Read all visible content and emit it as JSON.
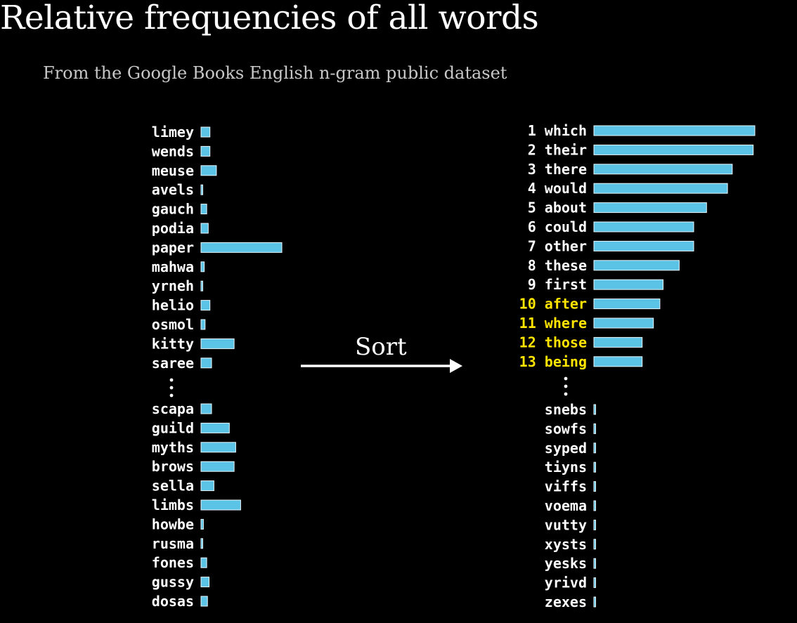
{
  "title": "Relative frequencies of all words",
  "subtitle": "From the Google Books English n-gram public dataset",
  "arrow_label": "Sort",
  "colors": {
    "bar": "#5bc4e6",
    "highlight": "#ffe400",
    "text": "#ffffff",
    "background": "#000000"
  },
  "chart_data": [
    {
      "type": "bar",
      "orientation": "horizontal",
      "title": "",
      "xlabel": "",
      "ylabel": "",
      "groups": [
        {
          "categories": [
            "limey",
            "wends",
            "meuse",
            "avels",
            "gauch",
            "podia",
            "paper",
            "mahwa",
            "yrneh",
            "helio",
            "osmol",
            "kitty",
            "saree"
          ],
          "values": [
            0.11,
            0.11,
            0.19,
            0.02,
            0.07,
            0.09,
            1.0,
            0.04,
            0.01,
            0.11,
            0.05,
            0.41,
            0.13
          ]
        },
        {
          "categories": [
            "scapa",
            "guild",
            "myths",
            "brows",
            "sella",
            "limbs",
            "howbe",
            "rusma",
            "fones",
            "gussy",
            "dosas"
          ],
          "values": [
            0.13,
            0.35,
            0.43,
            0.41,
            0.16,
            0.49,
            0.03,
            0.02,
            0.07,
            0.1,
            0.08
          ]
        }
      ]
    },
    {
      "type": "bar",
      "orientation": "horizontal",
      "title": "",
      "xlabel": "",
      "ylabel": "",
      "groups": [
        {
          "ranks": [
            "1",
            "2",
            "3",
            "4",
            "5",
            "6",
            "7",
            "8",
            "9",
            "10",
            "11",
            "12",
            "13"
          ],
          "categories": [
            "which",
            "their",
            "there",
            "would",
            "about",
            "could",
            "other",
            "these",
            "first",
            "after",
            "where",
            "those",
            "being"
          ],
          "values": [
            1.0,
            0.99,
            0.86,
            0.83,
            0.7,
            0.62,
            0.62,
            0.53,
            0.43,
            0.41,
            0.37,
            0.3,
            0.3
          ],
          "highlighted": [
            false,
            false,
            false,
            false,
            false,
            false,
            false,
            false,
            false,
            true,
            true,
            true,
            true
          ]
        },
        {
          "categories": [
            "snebs",
            "sowfs",
            "syped",
            "tiyns",
            "viffs",
            "voema",
            "vutty",
            "xysts",
            "yesks",
            "yrivd",
            "zexes"
          ],
          "values": [
            0.005,
            0.005,
            0.005,
            0.005,
            0.005,
            0.005,
            0.005,
            0.005,
            0.005,
            0.005,
            0.005
          ]
        }
      ]
    }
  ]
}
